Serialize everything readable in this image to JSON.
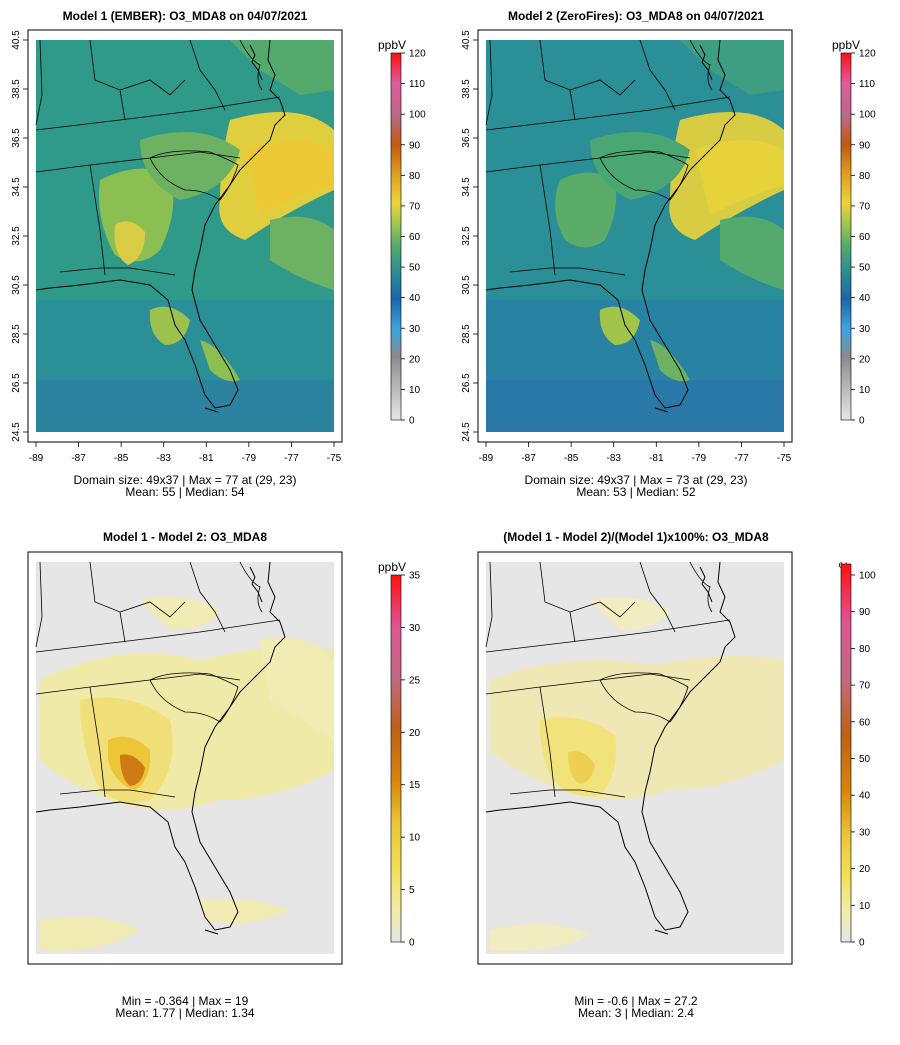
{
  "figure": "Model comparison of O3_MDA8 on 04/07/2021",
  "chart_data": [
    {
      "type": "heatmap",
      "title": "Model 1 (EMBER): O3_MDA8 on 04/07/2021",
      "variable": "O3_MDA8",
      "units": "ppbV",
      "colorbar_ticks": [
        0,
        10,
        20,
        30,
        40,
        50,
        60,
        70,
        80,
        90,
        100,
        110,
        120
      ],
      "colorbar_range": [
        0,
        120
      ],
      "xlim": [
        -89,
        -75
      ],
      "ylim": [
        24.5,
        40.5
      ],
      "x_ticks": [
        -89,
        -87,
        -85,
        -83,
        -81,
        -79,
        -77,
        -75
      ],
      "y_ticks": [
        24.5,
        26.5,
        28.5,
        30.5,
        32.5,
        34.5,
        36.5,
        38.5,
        40.5
      ],
      "stats_line1": "Domain size: 49x37 | Max = 77 at (29, 23)",
      "stats_line2": "Mean: 55 |  Median: 54",
      "domain_size": "49x37",
      "max": 77,
      "max_location": "(29, 23)",
      "mean": 55,
      "median": 54
    },
    {
      "type": "heatmap",
      "title": "Model 2 (ZeroFires): O3_MDA8 on 04/07/2021",
      "variable": "O3_MDA8",
      "units": "ppbV",
      "colorbar_ticks": [
        0,
        10,
        20,
        30,
        40,
        50,
        60,
        70,
        80,
        90,
        100,
        110,
        120
      ],
      "colorbar_range": [
        0,
        120
      ],
      "xlim": [
        -89,
        -75
      ],
      "ylim": [
        24.5,
        40.5
      ],
      "x_ticks": [
        -89,
        -87,
        -85,
        -83,
        -81,
        -79,
        -77,
        -75
      ],
      "y_ticks": [
        24.5,
        26.5,
        28.5,
        30.5,
        32.5,
        34.5,
        36.5,
        38.5,
        40.5
      ],
      "stats_line1": "Domain size: 49x37 | Max = 73 at (29, 23)",
      "stats_line2": "Mean: 53 |  Median: 52",
      "domain_size": "49x37",
      "max": 73,
      "max_location": "(29, 23)",
      "mean": 53,
      "median": 52
    },
    {
      "type": "heatmap",
      "title": "Model 1 - Model 2: O3_MDA8",
      "variable": "O3_MDA8",
      "units": "ppbV",
      "colorbar_ticks": [
        0,
        5,
        10,
        15,
        20,
        25,
        30,
        35
      ],
      "colorbar_range": [
        0,
        35
      ],
      "stats_line1": "Min = -0.364 | Max = 19",
      "stats_line2": "Mean: 1.77 |  Median: 1.34",
      "min": -0.364,
      "max": 19,
      "mean": 1.77,
      "median": 1.34
    },
    {
      "type": "heatmap",
      "title": "(Model 1 - Model 2)/(Model 1)x100%: O3_MDA8",
      "variable": "O3_MDA8",
      "units": "%",
      "colorbar_ticks": [
        0,
        10,
        20,
        30,
        40,
        50,
        60,
        70,
        80,
        90,
        100
      ],
      "colorbar_range": [
        0,
        100
      ],
      "stats_line1": "Min = -0.6 | Max = 27.2",
      "stats_line2": "Mean: 3 |  Median: 2.4",
      "min": -0.6,
      "max": 27.2,
      "mean": 3,
      "median": 2.4
    }
  ]
}
